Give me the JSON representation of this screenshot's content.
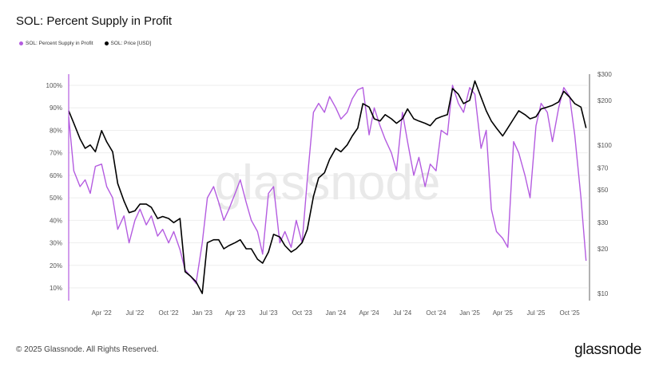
{
  "title": "SOL: Percent Supply in Profit",
  "footer": "© 2025 Glassnode. All Rights Reserved.",
  "logo": "glassnode",
  "watermark": "glassnode",
  "chart_data": {
    "type": "line",
    "title": "SOL: Percent Supply in Profit",
    "legend_position": "top-left",
    "grid": true,
    "x_ticks": [
      "Apr '22",
      "Jul '22",
      "Oct '22",
      "Jan '23",
      "Apr '23",
      "Jul '23",
      "Oct '23",
      "Jan '24",
      "Apr '24",
      "Jul '24",
      "Oct '24",
      "Jan '25",
      "Apr '25",
      "Jul '25",
      "Oct '25"
    ],
    "x_tick_dates": [
      "2022-04-01",
      "2022-07-01",
      "2022-10-01",
      "2023-01-01",
      "2023-04-01",
      "2023-07-01",
      "2023-10-01",
      "2024-01-01",
      "2024-04-01",
      "2024-07-01",
      "2024-10-01",
      "2025-01-01",
      "2025-04-01",
      "2025-07-01",
      "2025-10-01"
    ],
    "xlim": [
      "2022-01-01",
      "2025-11-20"
    ],
    "y_left": {
      "ticks": [
        "10%",
        "20%",
        "30%",
        "40%",
        "50%",
        "60%",
        "70%",
        "80%",
        "90%",
        "100%"
      ],
      "tick_values": [
        10,
        20,
        30,
        40,
        50,
        60,
        70,
        80,
        90,
        100
      ],
      "range": [
        5,
        102
      ],
      "scale": "linear"
    },
    "y_right": {
      "ticks": [
        "$10",
        "$20",
        "$30",
        "$50",
        "$70",
        "$100",
        "$200",
        "$300"
      ],
      "tick_values": [
        10,
        20,
        30,
        50,
        70,
        100,
        200,
        300
      ],
      "range": [
        10,
        300
      ],
      "scale": "log"
    },
    "series": [
      {
        "name": "SOL: Percent Supply in Profit",
        "axis": "left",
        "color": "#b45ce0",
        "x": [
          "2022-01-01",
          "2022-01-15",
          "2022-02-01",
          "2022-02-15",
          "2022-03-01",
          "2022-03-15",
          "2022-04-01",
          "2022-04-15",
          "2022-05-01",
          "2022-05-15",
          "2022-06-01",
          "2022-06-15",
          "2022-07-01",
          "2022-07-15",
          "2022-08-01",
          "2022-08-15",
          "2022-09-01",
          "2022-09-15",
          "2022-10-01",
          "2022-10-15",
          "2022-11-01",
          "2022-11-15",
          "2022-12-01",
          "2022-12-15",
          "2023-01-01",
          "2023-01-15",
          "2023-02-01",
          "2023-02-15",
          "2023-03-01",
          "2023-03-15",
          "2023-04-01",
          "2023-04-15",
          "2023-05-01",
          "2023-05-15",
          "2023-06-01",
          "2023-06-15",
          "2023-07-01",
          "2023-07-15",
          "2023-08-01",
          "2023-08-15",
          "2023-09-01",
          "2023-09-15",
          "2023-10-01",
          "2023-10-15",
          "2023-11-01",
          "2023-11-15",
          "2023-12-01",
          "2023-12-15",
          "2024-01-01",
          "2024-01-15",
          "2024-02-01",
          "2024-02-15",
          "2024-03-01",
          "2024-03-15",
          "2024-04-01",
          "2024-04-15",
          "2024-05-01",
          "2024-05-15",
          "2024-06-01",
          "2024-06-15",
          "2024-07-01",
          "2024-07-15",
          "2024-08-01",
          "2024-08-15",
          "2024-09-01",
          "2024-09-15",
          "2024-10-01",
          "2024-10-15",
          "2024-11-01",
          "2024-11-15",
          "2024-12-01",
          "2024-12-15",
          "2025-01-01",
          "2025-01-15",
          "2025-02-01",
          "2025-02-15",
          "2025-03-01",
          "2025-03-15",
          "2025-04-01",
          "2025-04-15",
          "2025-05-01",
          "2025-05-15",
          "2025-06-01",
          "2025-06-15",
          "2025-07-01",
          "2025-07-15",
          "2025-08-01",
          "2025-08-15",
          "2025-09-01",
          "2025-09-15",
          "2025-10-01",
          "2025-10-15",
          "2025-11-01",
          "2025-11-15"
        ],
        "values": [
          86,
          62,
          55,
          58,
          52,
          64,
          65,
          55,
          50,
          36,
          42,
          30,
          40,
          45,
          38,
          42,
          33,
          36,
          30,
          35,
          27,
          18,
          15,
          12,
          30,
          50,
          55,
          48,
          40,
          45,
          52,
          58,
          48,
          40,
          35,
          25,
          52,
          55,
          30,
          35,
          28,
          40,
          30,
          58,
          88,
          92,
          88,
          95,
          90,
          85,
          88,
          94,
          98,
          99,
          78,
          90,
          82,
          76,
          70,
          62,
          88,
          75,
          60,
          68,
          55,
          65,
          62,
          80,
          78,
          100,
          92,
          88,
          99,
          96,
          72,
          80,
          45,
          35,
          32,
          28,
          75,
          70,
          60,
          50,
          82,
          92,
          88,
          75,
          90,
          99,
          95,
          78,
          50,
          22
        ]
      },
      {
        "name": "SOL: Price [USD]",
        "axis": "right",
        "color": "#000000",
        "x": [
          "2022-01-01",
          "2022-01-15",
          "2022-02-01",
          "2022-02-15",
          "2022-03-01",
          "2022-03-15",
          "2022-04-01",
          "2022-04-15",
          "2022-05-01",
          "2022-05-15",
          "2022-06-01",
          "2022-06-15",
          "2022-07-01",
          "2022-07-15",
          "2022-08-01",
          "2022-08-15",
          "2022-09-01",
          "2022-09-15",
          "2022-10-01",
          "2022-10-15",
          "2022-11-01",
          "2022-11-15",
          "2022-12-01",
          "2022-12-15",
          "2023-01-01",
          "2023-01-15",
          "2023-02-01",
          "2023-02-15",
          "2023-03-01",
          "2023-03-15",
          "2023-04-01",
          "2023-04-15",
          "2023-05-01",
          "2023-05-15",
          "2023-06-01",
          "2023-06-15",
          "2023-07-01",
          "2023-07-15",
          "2023-08-01",
          "2023-08-15",
          "2023-09-01",
          "2023-09-15",
          "2023-10-01",
          "2023-10-15",
          "2023-11-01",
          "2023-11-15",
          "2023-12-01",
          "2023-12-15",
          "2024-01-01",
          "2024-01-15",
          "2024-02-01",
          "2024-02-15",
          "2024-03-01",
          "2024-03-15",
          "2024-04-01",
          "2024-04-15",
          "2024-05-01",
          "2024-05-15",
          "2024-06-01",
          "2024-06-15",
          "2024-07-01",
          "2024-07-15",
          "2024-08-01",
          "2024-08-15",
          "2024-09-01",
          "2024-09-15",
          "2024-10-01",
          "2024-10-15",
          "2024-11-01",
          "2024-11-15",
          "2024-12-01",
          "2024-12-15",
          "2025-01-01",
          "2025-01-15",
          "2025-02-01",
          "2025-02-15",
          "2025-03-01",
          "2025-03-15",
          "2025-04-01",
          "2025-04-15",
          "2025-05-01",
          "2025-05-15",
          "2025-06-01",
          "2025-06-15",
          "2025-07-01",
          "2025-07-15",
          "2025-08-01",
          "2025-08-15",
          "2025-09-01",
          "2025-09-15",
          "2025-10-01",
          "2025-10-15",
          "2025-11-01",
          "2025-11-15"
        ],
        "values": [
          170,
          140,
          110,
          95,
          100,
          90,
          125,
          105,
          90,
          55,
          42,
          35,
          36,
          40,
          40,
          38,
          32,
          33,
          32,
          30,
          32,
          14,
          13,
          12,
          10,
          22,
          23,
          23,
          20,
          21,
          22,
          23,
          20,
          20,
          17,
          16,
          19,
          25,
          24,
          21,
          19,
          20,
          22,
          27,
          45,
          60,
          65,
          80,
          95,
          90,
          100,
          115,
          130,
          190,
          180,
          150,
          145,
          160,
          150,
          140,
          150,
          175,
          150,
          145,
          140,
          135,
          150,
          155,
          160,
          240,
          220,
          190,
          200,
          270,
          210,
          170,
          145,
          130,
          115,
          130,
          150,
          170,
          160,
          150,
          155,
          175,
          180,
          185,
          195,
          230,
          210,
          190,
          180,
          130
        ]
      }
    ]
  }
}
